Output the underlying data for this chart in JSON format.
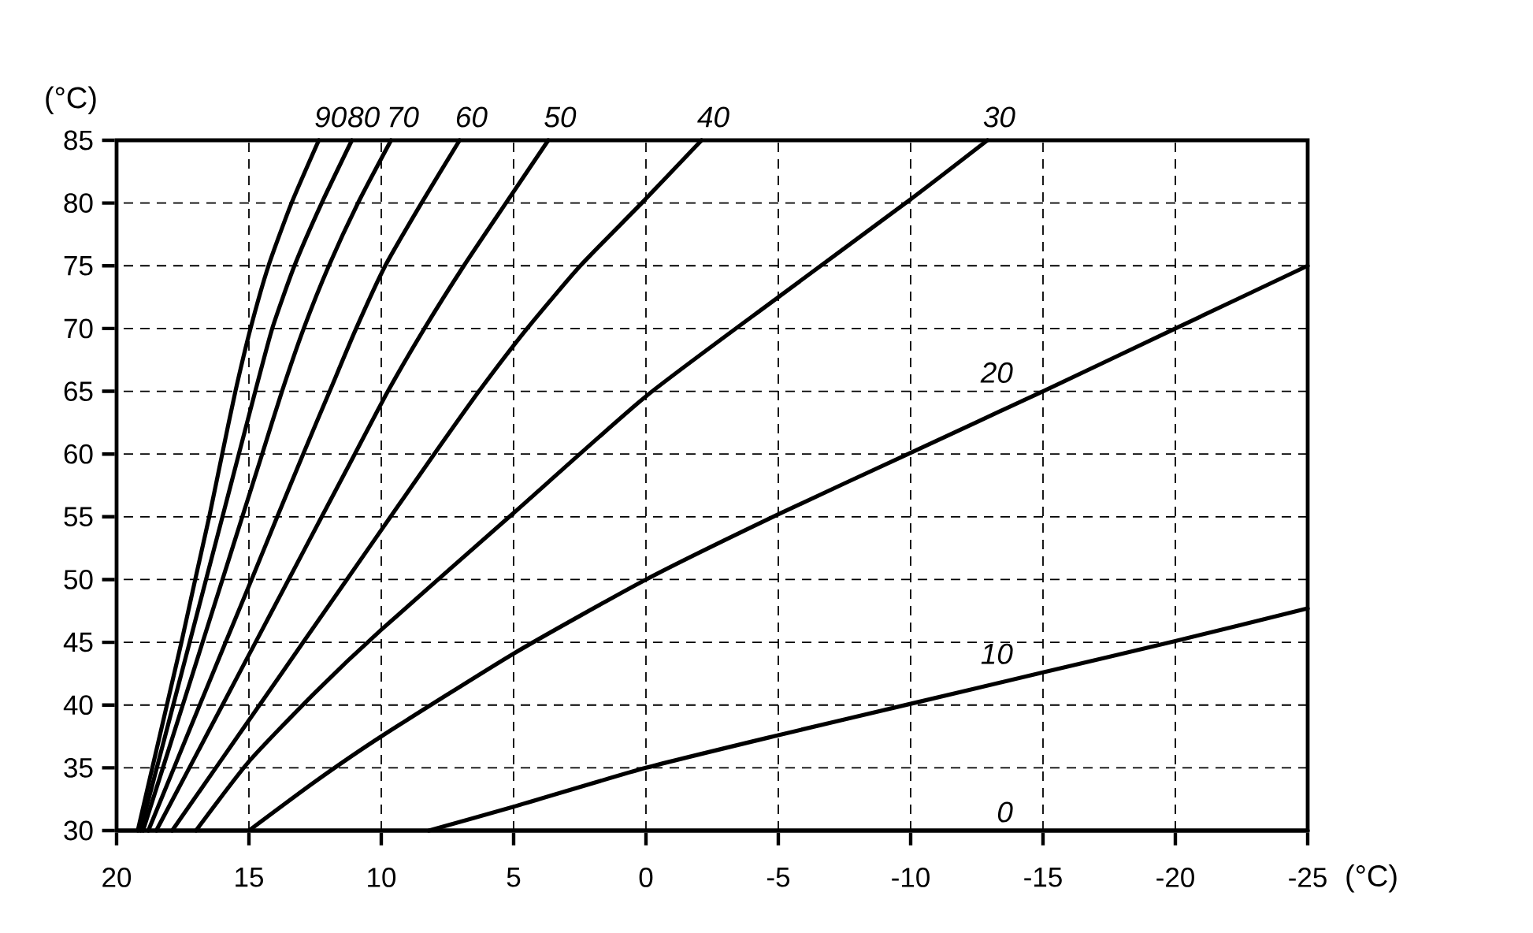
{
  "chart_data": {
    "type": "line",
    "xlabel": "(°C)",
    "ylabel": "(°C)",
    "xlim": [
      20,
      -25
    ],
    "ylim": [
      30,
      85
    ],
    "xticks": [
      20,
      15,
      10,
      5,
      0,
      -5,
      -10,
      -15,
      -20,
      -25
    ],
    "yticks": [
      30,
      35,
      40,
      45,
      50,
      55,
      60,
      65,
      70,
      75,
      80,
      85
    ],
    "grid": true,
    "series": [
      {
        "name": "90",
        "color": "#000000",
        "x": [
          19.2,
          18.65,
          18.1,
          17.55,
          17.03,
          16.5,
          16.01,
          15.51,
          14.94,
          14.26,
          13.39,
          12.36
        ],
        "values": [
          30,
          35,
          40,
          45,
          50,
          55,
          60,
          65,
          70,
          75,
          80,
          85
        ]
      },
      {
        "name": "80",
        "color": "#000000",
        "x": [
          19.1,
          18.48,
          17.86,
          17.24,
          16.62,
          16.0,
          15.38,
          14.76,
          14.12,
          13.28,
          12.25,
          11.11
        ],
        "values": [
          30,
          35,
          40,
          45,
          50,
          55,
          60,
          65,
          70,
          75,
          80,
          85
        ]
      },
      {
        "name": "70",
        "color": "#000000",
        "x": [
          19.0,
          18.25,
          17.5,
          16.75,
          16.0,
          15.25,
          14.5,
          13.75,
          12.93,
          11.98,
          10.88,
          9.63
        ],
        "values": [
          30,
          35,
          40,
          45,
          50,
          55,
          60,
          65,
          70,
          75,
          80,
          85
        ]
      },
      {
        "name": "60",
        "color": "#000000",
        "x": [
          18.8,
          17.83,
          16.86,
          15.88,
          14.9,
          13.93,
          12.95,
          11.95,
          10.95,
          9.85,
          8.48,
          7.04
        ],
        "values": [
          30,
          35,
          40,
          45,
          50,
          55,
          60,
          65,
          70,
          75,
          80,
          85
        ]
      },
      {
        "name": "50",
        "color": "#000000",
        "x": [
          18.5,
          17.25,
          16.0,
          14.75,
          13.5,
          12.25,
          11.0,
          9.75,
          8.37,
          6.88,
          5.29,
          3.69
        ],
        "values": [
          30,
          35,
          40,
          45,
          50,
          55,
          60,
          65,
          70,
          75,
          80,
          85
        ]
      },
      {
        "name": "40",
        "color": "#000000",
        "x": [
          17.9,
          16.25,
          14.6,
          12.95,
          11.3,
          9.65,
          8.0,
          6.31,
          4.49,
          2.48,
          0.16,
          -2.1
        ],
        "values": [
          30,
          35,
          40,
          45,
          50,
          55,
          60,
          65,
          70,
          75,
          80,
          85
        ]
      },
      {
        "name": "30",
        "color": "#000000",
        "x": [
          17.0,
          15,
          12.5,
          10,
          5,
          0,
          -5,
          -10,
          -12.9
        ],
        "values": [
          30,
          35.5,
          41,
          46,
          55.3,
          64.6,
          72.5,
          80.3,
          85
        ]
      },
      {
        "name": "20",
        "color": "#000000",
        "x": [
          15,
          12.5,
          10,
          5,
          0,
          -5,
          -10,
          -15,
          -20,
          -25
        ],
        "values": [
          30,
          33.9,
          37.5,
          44.1,
          50,
          55.2,
          60.1,
          65,
          70,
          75
        ]
      },
      {
        "name": "10",
        "color": "#000000",
        "x": [
          8.2,
          5,
          0,
          -5,
          -10,
          -15,
          -20,
          -25
        ],
        "values": [
          30,
          31.9,
          35,
          37.6,
          40.1,
          42.6,
          45.1,
          47.7
        ]
      },
      {
        "name": "0",
        "color": "#000000",
        "x": [
          20,
          -25
        ],
        "values": [
          30,
          30
        ]
      }
    ]
  }
}
